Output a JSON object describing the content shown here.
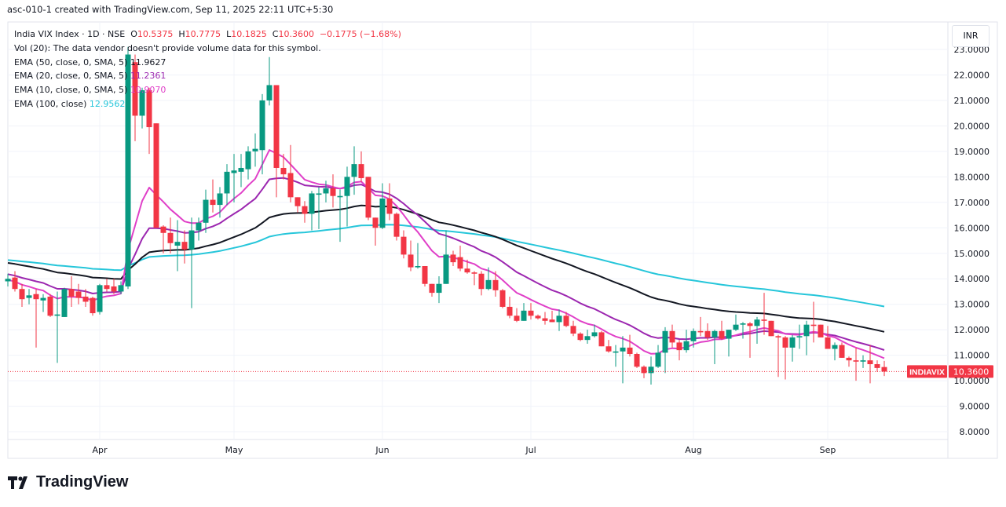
{
  "caption": "asc-010-1 created with TradingView.com, Sep 11, 2025 22:11 UTC+5:30",
  "legend": {
    "symbol": "India VIX Index · 1D · NSE",
    "o_label": "O",
    "o": "10.5375",
    "h_label": "H",
    "h": "10.7775",
    "l_label": "L",
    "l": "10.1825",
    "c_label": "C",
    "c": "10.3600",
    "change": "−0.1775 (−1.68%)",
    "vol": "Vol (20): The data vendor doesn't provide volume data for this symbol.",
    "ema": [
      {
        "label": "EMA (50, close, 0, SMA, 5)",
        "value": "11.9627",
        "color": "#131722"
      },
      {
        "label": "EMA (20, close, 0, SMA, 5)",
        "value": "11.2361",
        "color": "#9c27b0"
      },
      {
        "label": "EMA (10, close, 0, SMA, 5)",
        "value": "10.9070",
        "color": "#e040c8"
      },
      {
        "label": "EMA (100, close)",
        "value": "12.9562",
        "color": "#26c6da"
      }
    ]
  },
  "currency": "INR",
  "last_price_tag": {
    "symbol": "INDIAVIX",
    "price": "10.3600",
    "value": 10.36
  },
  "logo": "TradingView",
  "colors": {
    "up": "#089981",
    "down": "#f23645",
    "grid": "#f0f3fa"
  },
  "chart_data": {
    "type": "candlestick",
    "title": "India VIX Index · 1D · NSE",
    "ylim": [
      7.5,
      24
    ],
    "yticks": [
      "8.0000",
      "9.0000",
      "10.0000",
      "11.0000",
      "12.0000",
      "13.0000",
      "14.0000",
      "15.0000",
      "16.0000",
      "17.0000",
      "18.0000",
      "19.0000",
      "20.0000",
      "21.0000",
      "22.0000",
      "23.0000"
    ],
    "xticks": [
      {
        "label": "Apr",
        "index": 13
      },
      {
        "label": "May",
        "index": 32
      },
      {
        "label": "Jun",
        "index": 53
      },
      {
        "label": "Jul",
        "index": 74
      },
      {
        "label": "Aug",
        "index": 97
      },
      {
        "label": "Sep",
        "index": 116
      }
    ],
    "ohlc": [
      [
        13.9,
        14.2,
        13.7,
        14.0
      ],
      [
        14.05,
        14.3,
        13.5,
        13.6
      ],
      [
        13.6,
        13.8,
        12.9,
        13.2
      ],
      [
        13.25,
        13.6,
        13.0,
        13.35
      ],
      [
        13.4,
        13.6,
        11.3,
        13.2
      ],
      [
        13.15,
        13.4,
        12.7,
        13.25
      ],
      [
        13.3,
        13.4,
        12.5,
        12.55
      ],
      [
        12.55,
        13.5,
        10.7,
        12.6
      ],
      [
        12.5,
        13.65,
        12.5,
        13.6
      ],
      [
        13.6,
        14.1,
        12.9,
        13.3
      ],
      [
        13.5,
        13.8,
        13.0,
        13.25
      ],
      [
        13.3,
        13.6,
        12.9,
        13.1
      ],
      [
        13.25,
        13.3,
        12.55,
        12.65
      ],
      [
        12.7,
        13.8,
        12.6,
        13.75
      ],
      [
        13.75,
        14.0,
        13.5,
        13.6
      ],
      [
        13.7,
        14.0,
        13.4,
        13.5
      ],
      [
        13.5,
        13.9,
        13.4,
        13.75
      ],
      [
        13.7,
        23.1,
        13.6,
        22.8
      ],
      [
        22.5,
        22.8,
        19.4,
        20.4
      ],
      [
        20.4,
        21.5,
        19.9,
        21.4
      ],
      [
        21.4,
        21.5,
        18.9,
        19.95
      ],
      [
        20.1,
        20.1,
        16.0,
        16.0
      ],
      [
        16.05,
        16.1,
        15.0,
        15.8
      ],
      [
        15.8,
        16.4,
        15.0,
        15.4
      ],
      [
        15.3,
        16.3,
        14.3,
        15.45
      ],
      [
        15.45,
        15.9,
        14.6,
        15.15
      ],
      [
        15.15,
        16.4,
        12.85,
        15.9
      ],
      [
        15.9,
        16.4,
        15.5,
        16.2
      ],
      [
        16.2,
        17.5,
        15.8,
        17.1
      ],
      [
        17.1,
        17.9,
        16.6,
        16.9
      ],
      [
        16.9,
        17.6,
        16.4,
        17.35
      ],
      [
        17.35,
        18.5,
        16.9,
        18.2
      ],
      [
        18.15,
        18.9,
        17.0,
        18.25
      ],
      [
        18.2,
        18.9,
        17.6,
        18.35
      ],
      [
        18.3,
        19.2,
        17.9,
        19.0
      ],
      [
        19.0,
        19.7,
        18.4,
        19.1
      ],
      [
        19.05,
        21.25,
        18.1,
        21.0
      ],
      [
        21.0,
        22.7,
        20.8,
        21.6
      ],
      [
        21.6,
        21.6,
        17.2,
        18.35
      ],
      [
        18.35,
        18.9,
        17.9,
        18.1
      ],
      [
        18.15,
        19.25,
        17.0,
        17.2
      ],
      [
        17.2,
        17.2,
        16.6,
        16.85
      ],
      [
        16.85,
        17.05,
        16.2,
        16.55
      ],
      [
        16.55,
        17.45,
        15.9,
        17.35
      ],
      [
        17.3,
        17.6,
        15.95,
        17.35
      ],
      [
        17.35,
        17.85,
        17.0,
        17.55
      ],
      [
        17.55,
        18.1,
        16.8,
        17.25
      ],
      [
        17.2,
        17.5,
        15.45,
        17.25
      ],
      [
        17.25,
        18.4,
        16.05,
        18.0
      ],
      [
        18.0,
        19.2,
        17.3,
        18.5
      ],
      [
        18.5,
        19.0,
        17.8,
        17.95
      ],
      [
        18.0,
        18.0,
        16.3,
        16.4
      ],
      [
        16.4,
        16.4,
        15.3,
        16.0
      ],
      [
        16.0,
        17.75,
        15.95,
        17.15
      ],
      [
        17.15,
        17.75,
        16.3,
        16.55
      ],
      [
        16.55,
        16.6,
        15.5,
        15.65
      ],
      [
        15.65,
        15.9,
        14.8,
        14.95
      ],
      [
        14.95,
        15.5,
        14.3,
        14.45
      ],
      [
        14.45,
        15.4,
        14.4,
        14.5
      ],
      [
        14.5,
        14.5,
        13.7,
        13.8
      ],
      [
        13.8,
        13.8,
        13.3,
        13.45
      ],
      [
        13.45,
        14.1,
        13.05,
        13.8
      ],
      [
        13.8,
        15.9,
        13.8,
        14.95
      ],
      [
        14.95,
        15.1,
        14.5,
        14.65
      ],
      [
        14.85,
        15.3,
        14.3,
        14.4
      ],
      [
        14.4,
        14.75,
        14.2,
        14.25
      ],
      [
        14.25,
        14.3,
        13.75,
        14.2
      ],
      [
        14.2,
        14.3,
        13.35,
        13.6
      ],
      [
        13.6,
        14.45,
        13.55,
        13.95
      ],
      [
        13.95,
        14.3,
        13.3,
        13.55
      ],
      [
        13.55,
        13.6,
        12.85,
        12.9
      ],
      [
        12.9,
        13.3,
        12.45,
        12.55
      ],
      [
        12.55,
        12.85,
        12.3,
        12.35
      ],
      [
        12.35,
        13.05,
        12.35,
        12.75
      ],
      [
        12.75,
        13.05,
        12.4,
        12.55
      ],
      [
        12.55,
        12.6,
        12.4,
        12.45
      ],
      [
        12.45,
        12.7,
        12.2,
        12.35
      ],
      [
        12.4,
        12.75,
        12.3,
        12.3
      ],
      [
        12.3,
        12.8,
        11.95,
        12.55
      ],
      [
        12.55,
        12.7,
        12.1,
        12.15
      ],
      [
        12.15,
        12.35,
        11.75,
        11.85
      ],
      [
        11.85,
        11.9,
        11.55,
        11.6
      ],
      [
        11.6,
        12.0,
        11.45,
        11.75
      ],
      [
        11.75,
        12.2,
        11.7,
        11.9
      ],
      [
        11.9,
        11.95,
        11.35,
        11.35
      ],
      [
        11.35,
        11.6,
        11.1,
        11.15
      ],
      [
        11.1,
        11.4,
        10.55,
        11.15
      ],
      [
        11.15,
        11.75,
        9.9,
        11.3
      ],
      [
        11.3,
        11.8,
        10.95,
        11.05
      ],
      [
        11.05,
        11.1,
        10.5,
        10.55
      ],
      [
        10.55,
        10.6,
        10.1,
        10.3
      ],
      [
        10.3,
        10.95,
        9.85,
        10.55
      ],
      [
        10.55,
        11.4,
        10.5,
        11.1
      ],
      [
        11.1,
        12.1,
        10.3,
        11.95
      ],
      [
        11.95,
        12.2,
        11.3,
        11.5
      ],
      [
        11.5,
        11.6,
        10.8,
        11.2
      ],
      [
        11.2,
        12.0,
        11.1,
        11.55
      ],
      [
        11.55,
        12.05,
        11.3,
        11.95
      ],
      [
        11.95,
        12.5,
        11.75,
        11.9
      ],
      [
        11.95,
        12.25,
        11.6,
        11.7
      ],
      [
        11.7,
        12.0,
        10.65,
        11.95
      ],
      [
        11.95,
        12.35,
        11.6,
        11.65
      ],
      [
        11.65,
        12.0,
        10.95,
        12.0
      ],
      [
        12.0,
        12.6,
        11.95,
        12.2
      ],
      [
        12.2,
        12.3,
        11.65,
        12.25
      ],
      [
        12.25,
        12.3,
        10.9,
        12.15
      ],
      [
        12.15,
        12.5,
        11.45,
        12.4
      ],
      [
        12.4,
        13.45,
        11.8,
        12.35
      ],
      [
        12.35,
        12.35,
        11.75,
        11.75
      ],
      [
        11.75,
        11.8,
        10.15,
        11.7
      ],
      [
        11.7,
        11.75,
        10.05,
        11.3
      ],
      [
        11.3,
        11.8,
        10.75,
        11.7
      ],
      [
        11.7,
        12.2,
        11.25,
        11.75
      ],
      [
        11.75,
        12.35,
        11.0,
        12.2
      ],
      [
        12.2,
        13.1,
        11.5,
        12.15
      ],
      [
        12.2,
        12.2,
        11.7,
        11.7
      ],
      [
        11.7,
        12.15,
        11.25,
        11.25
      ],
      [
        11.25,
        11.5,
        10.8,
        11.4
      ],
      [
        11.4,
        11.5,
        10.9,
        10.9
      ],
      [
        10.9,
        10.95,
        10.55,
        10.8
      ],
      [
        10.8,
        11.3,
        10.0,
        10.75
      ],
      [
        10.75,
        11.0,
        10.5,
        10.8
      ],
      [
        10.8,
        11.4,
        9.9,
        10.65
      ],
      [
        10.65,
        10.8,
        10.35,
        10.5
      ],
      [
        10.5375,
        10.7775,
        10.1825,
        10.36
      ]
    ],
    "ema_series": [
      {
        "name": "EMA 100",
        "period": 100,
        "seed": 14.75,
        "color": "#26c6da"
      },
      {
        "name": "EMA 50",
        "period": 50,
        "seed": 14.65,
        "color": "#131722"
      },
      {
        "name": "EMA 20",
        "period": 20,
        "seed": 14.2,
        "color": "#9c27b0"
      },
      {
        "name": "EMA 10",
        "period": 10,
        "seed": 13.95,
        "color": "#e040c8"
      }
    ]
  }
}
